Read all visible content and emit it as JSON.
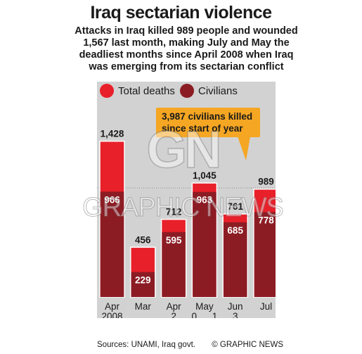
{
  "header": {
    "title": "Iraq sectarian violence",
    "subtitle": "Attacks in Iraq killed 989 people and wounded 1,567 last month, making July and May the deadliest months since April 2008 when Iraq was emerging from its sectarian conflict"
  },
  "legend": {
    "total_label": "Total deaths",
    "civilian_label": "Civilians"
  },
  "callout": {
    "text": "3,987 civilians killed since start of year"
  },
  "watermark": {
    "logo": "GN",
    "text": "GRAPHIC NEWS"
  },
  "footer": {
    "sources": "Sources: UNAMI, Iraq govt.",
    "credit": "© GRAPHIC NEWS"
  },
  "colors": {
    "total": "#e8202a",
    "civilian": "#8c1c24",
    "background": "#d2d2d2",
    "callout": "#f5a623"
  },
  "chart_data": {
    "type": "bar",
    "categories": [
      "Apr 2008",
      "Mar",
      "Apr",
      "May",
      "Jun",
      "Jul"
    ],
    "period_label_2013": "2013",
    "series": [
      {
        "name": "Total deaths",
        "values": [
          1428,
          456,
          712,
          1045,
          761,
          989
        ]
      },
      {
        "name": "Civilians",
        "values": [
          966,
          229,
          595,
          963,
          685,
          778
        ]
      }
    ],
    "value_labels": {
      "total": [
        "1,428",
        "456",
        "712",
        "1,045",
        "761",
        "989"
      ],
      "civilian": [
        "966",
        "229",
        "595",
        "963",
        "685",
        "778"
      ]
    },
    "ylim": [
      0,
      1500
    ]
  }
}
